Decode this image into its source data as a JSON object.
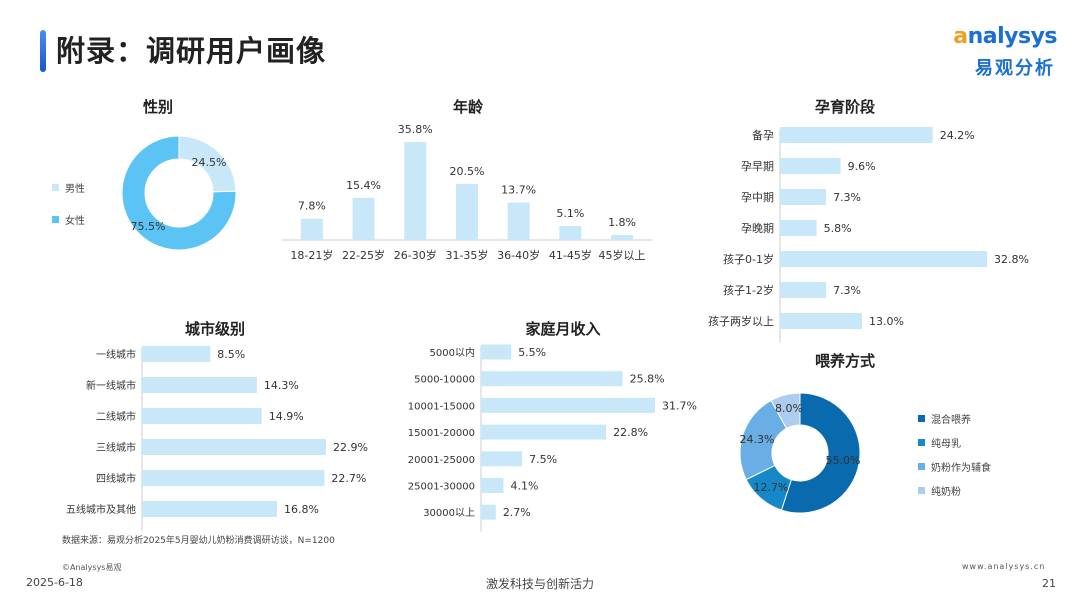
{
  "header": {
    "title": "附录：调研用户画像"
  },
  "logo": {
    "text_prefix": "a",
    "text_rest": "nalysys",
    "cn": "易观分析"
  },
  "colors": {
    "light_blue": "#c8e8fa",
    "pie_primary": "#5bc4f5",
    "feed1": "#0a6aae",
    "feed2": "#1488c8",
    "feed3": "#6aaee6",
    "feed4": "#aecbf0"
  },
  "chart_data": [
    {
      "id": "gender",
      "type": "pie",
      "title": "性别",
      "categories": [
        "男性",
        "女性"
      ],
      "values": [
        24.5,
        75.5
      ],
      "labels": [
        "24.5%",
        "75.5%"
      ]
    },
    {
      "id": "age",
      "type": "bar",
      "title": "年龄",
      "categories": [
        "18-21岁",
        "22-25岁",
        "26-30岁",
        "31-35岁",
        "36-40岁",
        "41-45岁",
        "45岁以上"
      ],
      "values": [
        7.8,
        15.4,
        35.8,
        20.5,
        13.7,
        5.1,
        1.8
      ],
      "labels": [
        "7.8%",
        "15.4%",
        "35.8%",
        "20.5%",
        "13.7%",
        "5.1%",
        "1.8%"
      ]
    },
    {
      "id": "pregnancy",
      "type": "bar",
      "orientation": "horizontal",
      "title": "孕育阶段",
      "categories": [
        "备孕",
        "孕早期",
        "孕中期",
        "孕晚期",
        "孩子0-1岁",
        "孩子1-2岁",
        "孩子两岁以上"
      ],
      "values": [
        24.2,
        9.6,
        7.3,
        5.8,
        32.8,
        7.3,
        13.0
      ],
      "labels": [
        "24.2%",
        "9.6%",
        "7.3%",
        "5.8%",
        "32.8%",
        "7.3%",
        "13.0%"
      ]
    },
    {
      "id": "city",
      "type": "bar",
      "orientation": "horizontal",
      "title": "城市级别",
      "categories": [
        "一线城市",
        "新一线城市",
        "二线城市",
        "三线城市",
        "四线城市",
        "五线城市及其他"
      ],
      "values": [
        8.5,
        14.3,
        14.9,
        22.9,
        22.7,
        16.8
      ],
      "labels": [
        "8.5%",
        "14.3%",
        "14.9%",
        "22.9%",
        "22.7%",
        "16.8%"
      ]
    },
    {
      "id": "income",
      "type": "bar",
      "orientation": "horizontal",
      "title": "家庭月收入",
      "categories": [
        "5000以内",
        "5000-10000",
        "10001-15000",
        "15001-20000",
        "20001-25000",
        "25001-30000",
        "30000以上"
      ],
      "values": [
        5.5,
        25.8,
        31.7,
        22.8,
        7.5,
        4.1,
        2.7
      ],
      "labels": [
        "5.5%",
        "25.8%",
        "31.7%",
        "22.8%",
        "7.5%",
        "4.1%",
        "2.7%"
      ]
    },
    {
      "id": "feeding",
      "type": "pie",
      "title": "喂养方式",
      "categories": [
        "混合喂养",
        "纯母乳",
        "奶粉作为辅食",
        "纯奶粉"
      ],
      "values": [
        55.0,
        12.7,
        24.3,
        8.0
      ],
      "labels": [
        "55.0%",
        "12.7%",
        "24.3%",
        "8.0%"
      ]
    }
  ],
  "footer": {
    "source": "数据来源：易观分析2025年5月婴幼儿奶粉消费调研访谈，N=1200",
    "copyright": "©Analysys易观",
    "url": "www.analysys.cn",
    "date": "2025-6-18",
    "slogan": "激发科技与创新活力",
    "page": "21"
  }
}
